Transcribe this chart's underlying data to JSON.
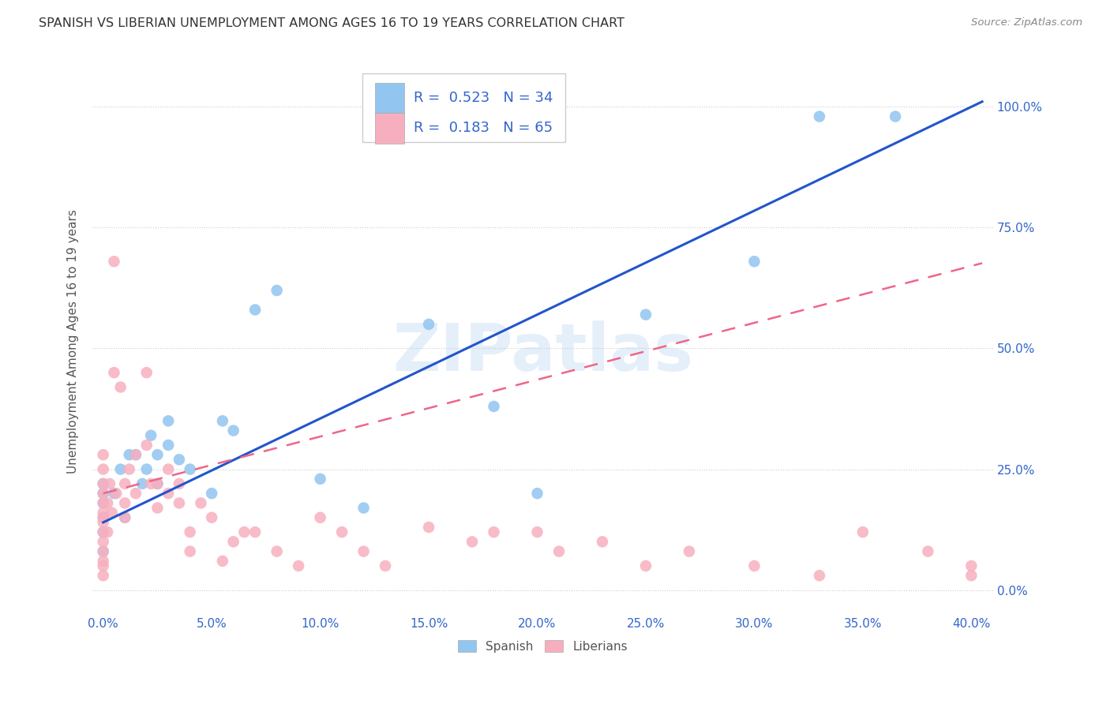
{
  "title": "SPANISH VS LIBERIAN UNEMPLOYMENT AMONG AGES 16 TO 19 YEARS CORRELATION CHART",
  "source": "Source: ZipAtlas.com",
  "xlabel_ticks": [
    0.0,
    5.0,
    10.0,
    15.0,
    20.0,
    25.0,
    30.0,
    35.0,
    40.0
  ],
  "ylabel_ticks": [
    0.0,
    25.0,
    50.0,
    75.0,
    100.0
  ],
  "xlim": [
    -0.5,
    41.0
  ],
  "ylim": [
    -5.0,
    108.0
  ],
  "spanish_R": 0.523,
  "spanish_N": 34,
  "liberian_R": 0.183,
  "liberian_N": 65,
  "spanish_color": "#92C5F0",
  "liberian_color": "#F7AFBF",
  "trend_blue": "#2255CC",
  "trend_pink": "#EE6688",
  "background_color": "#FFFFFF",
  "grid_color": "#CCCCCC",
  "title_color": "#333333",
  "axis_label_color": "#3366CC",
  "ylabel_text": "Unemployment Among Ages 16 to 19 years",
  "watermark_text": "ZIPatlas",
  "spanish_x": [
    0.0,
    0.0,
    0.0,
    0.0,
    0.0,
    0.0,
    0.5,
    0.8,
    1.0,
    1.2,
    1.5,
    1.8,
    2.0,
    2.2,
    2.5,
    2.5,
    3.0,
    3.0,
    3.5,
    4.0,
    5.0,
    5.5,
    6.0,
    7.0,
    8.0,
    10.0,
    12.0,
    15.0,
    18.0,
    20.0,
    25.0,
    30.0,
    33.0,
    36.5
  ],
  "spanish_y": [
    15.0,
    18.0,
    20.0,
    12.0,
    8.0,
    22.0,
    20.0,
    25.0,
    15.0,
    28.0,
    28.0,
    22.0,
    25.0,
    32.0,
    28.0,
    22.0,
    30.0,
    35.0,
    27.0,
    25.0,
    20.0,
    35.0,
    33.0,
    58.0,
    62.0,
    23.0,
    17.0,
    55.0,
    38.0,
    20.0,
    57.0,
    68.0,
    98.0,
    98.0
  ],
  "liberian_x": [
    0.0,
    0.0,
    0.0,
    0.0,
    0.0,
    0.0,
    0.0,
    0.0,
    0.0,
    0.0,
    0.0,
    0.0,
    0.0,
    0.0,
    0.2,
    0.2,
    0.3,
    0.4,
    0.5,
    0.5,
    0.6,
    0.8,
    1.0,
    1.0,
    1.0,
    1.2,
    1.5,
    1.5,
    2.0,
    2.0,
    2.2,
    2.5,
    2.5,
    3.0,
    3.0,
    3.5,
    3.5,
    4.0,
    4.0,
    4.5,
    5.0,
    5.5,
    6.0,
    6.5,
    7.0,
    8.0,
    9.0,
    10.0,
    11.0,
    12.0,
    13.0,
    15.0,
    17.0,
    18.0,
    20.0,
    21.0,
    23.0,
    25.0,
    27.0,
    30.0,
    33.0,
    35.0,
    38.0,
    40.0,
    40.0
  ],
  "liberian_y": [
    15.0,
    12.0,
    10.0,
    8.0,
    6.0,
    18.0,
    20.0,
    22.0,
    16.0,
    14.0,
    25.0,
    28.0,
    5.0,
    3.0,
    18.0,
    12.0,
    22.0,
    16.0,
    68.0,
    45.0,
    20.0,
    42.0,
    22.0,
    18.0,
    15.0,
    25.0,
    28.0,
    20.0,
    45.0,
    30.0,
    22.0,
    22.0,
    17.0,
    25.0,
    20.0,
    22.0,
    18.0,
    12.0,
    8.0,
    18.0,
    15.0,
    6.0,
    10.0,
    12.0,
    12.0,
    8.0,
    5.0,
    15.0,
    12.0,
    8.0,
    5.0,
    13.0,
    10.0,
    12.0,
    12.0,
    8.0,
    10.0,
    5.0,
    8.0,
    5.0,
    3.0,
    12.0,
    8.0,
    5.0,
    3.0
  ]
}
